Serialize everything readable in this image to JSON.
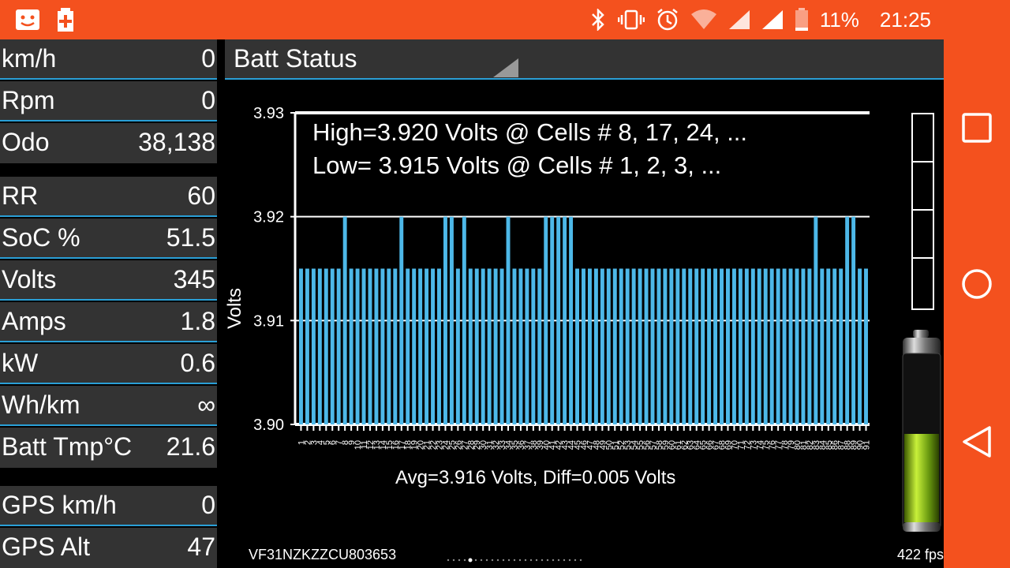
{
  "status_bar": {
    "battery_percent": "11%",
    "time": "21:25",
    "icons": [
      "face-icon",
      "battery-add-icon",
      "bluetooth-icon",
      "vibrate-icon",
      "alarm-icon",
      "wifi-icon",
      "signal-icon",
      "signal-icon-2",
      "battery-icon"
    ]
  },
  "left_panel": {
    "rows": [
      {
        "label": "km/h",
        "value": "0"
      },
      {
        "label": "Rpm",
        "value": "0"
      },
      {
        "label": "Odo",
        "value": "38,138"
      },
      {
        "label": "RR",
        "value": "60"
      },
      {
        "label": "SoC %",
        "value": "51.5"
      },
      {
        "label": "Volts",
        "value": "345"
      },
      {
        "label": "Amps",
        "value": "1.8"
      },
      {
        "label": "kW",
        "value": "0.6"
      },
      {
        "label": "Wh/km",
        "value": "∞"
      },
      {
        "label": "Batt Tmp°C",
        "value": "21.6"
      },
      {
        "label": "GPS km/h",
        "value": "0"
      },
      {
        "label": "GPS Alt",
        "value": "47"
      }
    ]
  },
  "header": {
    "title": "Batt Status"
  },
  "chart_data": {
    "type": "bar",
    "ylabel": "Volts",
    "ylim": [
      3.9,
      3.93
    ],
    "yticks": [
      "3.93",
      "3.92",
      "3.91",
      "3.90"
    ],
    "high_text": "High=3.920 Volts @ Cells # 8, 17, 24,  ...",
    "low_text": "Low= 3.915 Volts @ Cells # 1, 2, 3,  ...",
    "summary": "Avg=3.916 Volts, Diff=0.005 Volts",
    "bar_color": "#4db8e8",
    "high_value": 3.92,
    "low_value": 3.915,
    "values": [
      3.915,
      3.915,
      3.915,
      3.915,
      3.915,
      3.915,
      3.915,
      3.92,
      3.915,
      3.915,
      3.915,
      3.915,
      3.915,
      3.915,
      3.915,
      3.915,
      3.92,
      3.915,
      3.915,
      3.915,
      3.915,
      3.915,
      3.915,
      3.92,
      3.92,
      3.915,
      3.92,
      3.915,
      3.915,
      3.915,
      3.915,
      3.915,
      3.915,
      3.92,
      3.915,
      3.915,
      3.915,
      3.915,
      3.915,
      3.92,
      3.92,
      3.92,
      3.92,
      3.92,
      3.915,
      3.915,
      3.915,
      3.915,
      3.915,
      3.915,
      3.915,
      3.915,
      3.915,
      3.915,
      3.915,
      3.915,
      3.915,
      3.915,
      3.915,
      3.915,
      3.915,
      3.915,
      3.915,
      3.915,
      3.915,
      3.915,
      3.915,
      3.915,
      3.915,
      3.915,
      3.915,
      3.915,
      3.915,
      3.915,
      3.915,
      3.915,
      3.915,
      3.915,
      3.915,
      3.915,
      3.915,
      3.915,
      3.92,
      3.915,
      3.915,
      3.915,
      3.915,
      3.92,
      3.92,
      3.915,
      3.915
    ]
  },
  "footer": {
    "vin": "VF31NZKZZCU803653",
    "fps": "422 fps"
  },
  "nav": {
    "icons": [
      "recent-apps-icon",
      "home-icon",
      "back-icon"
    ]
  }
}
